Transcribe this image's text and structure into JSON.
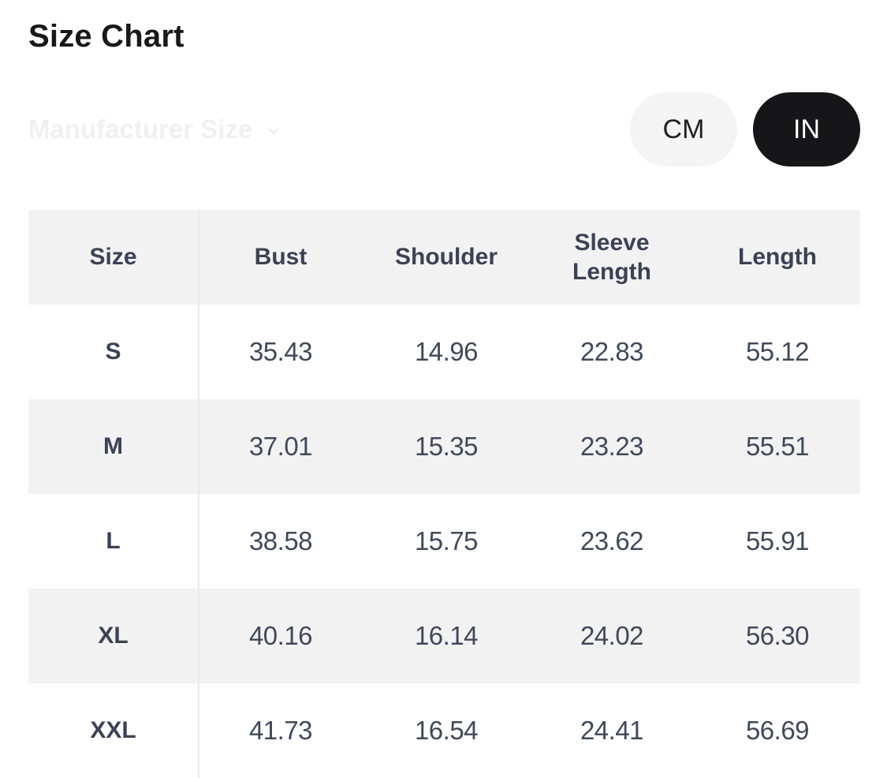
{
  "page": {
    "title": "Size Chart"
  },
  "controls": {
    "manufacturer_size": {
      "label": "Manufacturer Size"
    },
    "unit_toggle": {
      "options": [
        {
          "label": "CM",
          "selected": false
        },
        {
          "label": "IN",
          "selected": true
        }
      ]
    }
  },
  "icons": {
    "chevron_down": "⌄"
  },
  "colors": {
    "selected_pill_bg": "#161619",
    "unselected_pill_bg": "#f4f4f5",
    "row_alt_bg": "#f2f2f3",
    "table_text": "#3b4254",
    "faded_label": "#f0f0f1"
  },
  "chart_data": {
    "type": "table",
    "unit": "IN",
    "columns": [
      "Size",
      "Bust",
      "Shoulder",
      "Sleeve Length",
      "Length"
    ],
    "rows": [
      {
        "size": "S",
        "values": [
          "35.43",
          "14.96",
          "22.83",
          "55.12"
        ]
      },
      {
        "size": "M",
        "values": [
          "37.01",
          "15.35",
          "23.23",
          "55.51"
        ]
      },
      {
        "size": "L",
        "values": [
          "38.58",
          "15.75",
          "23.62",
          "55.91"
        ]
      },
      {
        "size": "XL",
        "values": [
          "40.16",
          "16.14",
          "24.02",
          "56.30"
        ]
      },
      {
        "size": "XXL",
        "values": [
          "41.73",
          "16.54",
          "24.41",
          "56.69"
        ]
      }
    ]
  }
}
